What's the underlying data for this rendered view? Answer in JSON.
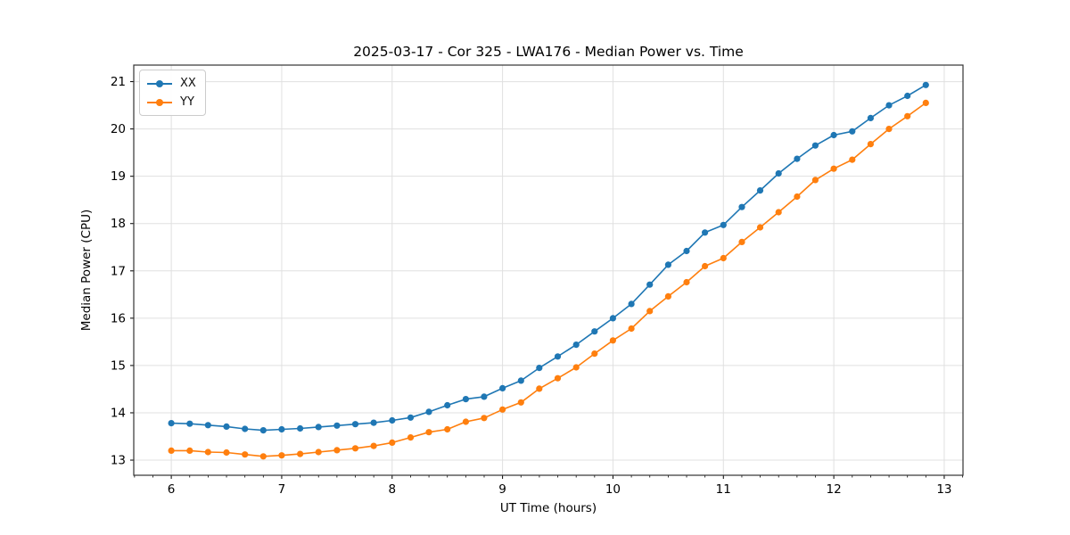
{
  "chart_data": {
    "type": "line",
    "title": "2025-03-17 - Cor 325 - LWA176 - Median Power vs. Time",
    "xlabel": "UT Time (hours)",
    "ylabel": "Median Power (CPU)",
    "xlim": [
      5.66,
      13.17
    ],
    "ylim": [
      12.68,
      21.35
    ],
    "xticks": [
      6,
      7,
      8,
      9,
      10,
      11,
      12,
      13
    ],
    "yticks": [
      13,
      14,
      15,
      16,
      17,
      18,
      19,
      20,
      21
    ],
    "x_minor_step": 0.16667,
    "grid": true,
    "legend_position": "upper left",
    "x": [
      6.0,
      6.167,
      6.333,
      6.5,
      6.667,
      6.833,
      7.0,
      7.167,
      7.333,
      7.5,
      7.667,
      7.833,
      8.0,
      8.167,
      8.333,
      8.5,
      8.667,
      8.833,
      9.0,
      9.167,
      9.333,
      9.5,
      9.667,
      9.833,
      10.0,
      10.167,
      10.333,
      10.5,
      10.667,
      10.833,
      11.0,
      11.167,
      11.333,
      11.5,
      11.667,
      11.833,
      12.0,
      12.167,
      12.333,
      12.5,
      12.667,
      12.833
    ],
    "series": [
      {
        "name": "XX",
        "color": "#1f77b4",
        "marker": "circle",
        "values": [
          13.78,
          13.77,
          13.74,
          13.71,
          13.66,
          13.63,
          13.65,
          13.67,
          13.7,
          13.73,
          13.76,
          13.79,
          13.84,
          13.9,
          14.02,
          14.16,
          14.29,
          14.34,
          14.52,
          14.68,
          14.95,
          15.19,
          15.44,
          15.72,
          16.0,
          16.3,
          16.71,
          17.13,
          17.42,
          17.81,
          17.97,
          18.35,
          18.7,
          19.06,
          19.37,
          19.65,
          19.87,
          19.95,
          20.23,
          20.5,
          20.7,
          20.93
        ]
      },
      {
        "name": "YY",
        "color": "#ff7f0e",
        "marker": "circle",
        "values": [
          13.2,
          13.2,
          13.17,
          13.16,
          13.12,
          13.08,
          13.1,
          13.13,
          13.17,
          13.21,
          13.25,
          13.3,
          13.37,
          13.48,
          13.59,
          13.65,
          13.81,
          13.89,
          14.07,
          14.22,
          14.51,
          14.73,
          14.96,
          15.25,
          15.53,
          15.78,
          16.15,
          16.46,
          16.76,
          17.1,
          17.27,
          17.61,
          17.92,
          18.24,
          18.57,
          18.92,
          19.16,
          19.35,
          19.68,
          20.0,
          20.27,
          20.55
        ]
      }
    ]
  },
  "colors": {
    "grid": "#e0e0e0",
    "spine": "#333333",
    "tick": "#000000",
    "background": "#ffffff",
    "legend_border": "#cccccc"
  }
}
